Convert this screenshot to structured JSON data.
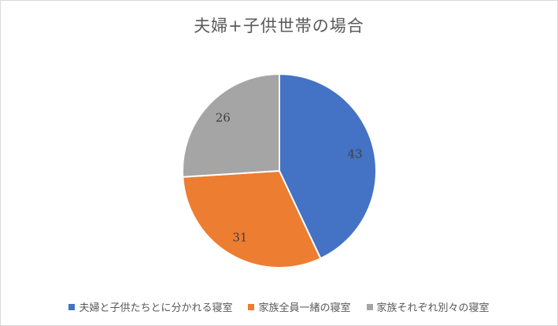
{
  "chart_data": {
    "type": "pie",
    "title": "夫婦+子供世帯の場合",
    "labels": [
      "夫婦と子供たちとに分かれる寝室",
      "家族全員一緒の寝室",
      "家族それぞれ別々の寝室"
    ],
    "values": [
      43,
      31,
      26
    ],
    "colors": [
      "#4472C4",
      "#ED7D31",
      "#A5A5A5"
    ],
    "data_labels": [
      43,
      31,
      26
    ],
    "start_angle_deg": 0,
    "direction": "clockwise",
    "legend_position": "bottom",
    "title_color": "#595959",
    "label_color": "#404040",
    "legend_text_color": "#595959",
    "slice_border_color": "#FFFFFF"
  }
}
